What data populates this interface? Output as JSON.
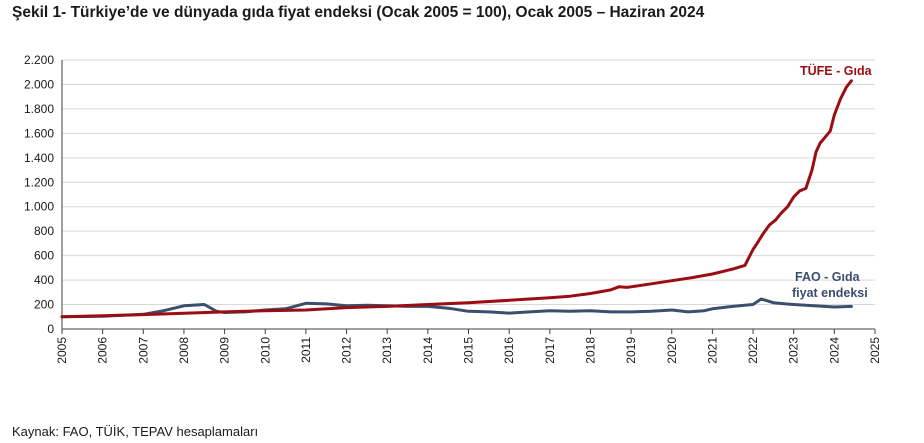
{
  "title": "Şekil 1- Türkiye’de ve dünyada gıda fiyat endeksi (Ocak 2005 = 100), Ocak 2005 – Haziran 2024",
  "source": "Kaynak: FAO, TÜİK, TEPAV hesaplamaları",
  "colors": {
    "tufe": "#9b0d12",
    "fao": "#3a4e6e",
    "grid": "#d9d9d9",
    "axis": "#404040"
  },
  "chart_data": {
    "type": "line",
    "xlim": [
      2005,
      2025
    ],
    "ylim": [
      0,
      2200
    ],
    "x_ticks": [
      2005,
      2006,
      2007,
      2008,
      2009,
      2010,
      2011,
      2012,
      2013,
      2014,
      2015,
      2016,
      2017,
      2018,
      2019,
      2020,
      2021,
      2022,
      2023,
      2024,
      2025
    ],
    "y_ticks": [
      0,
      200,
      400,
      600,
      800,
      1000,
      1200,
      1400,
      1600,
      1800,
      2000,
      2200
    ],
    "y_tick_labels": [
      "0",
      "200",
      "400",
      "600",
      "800",
      "1.000",
      "1.200",
      "1.400",
      "1.600",
      "1.800",
      "2.000",
      "2.200"
    ],
    "grid": true,
    "series": [
      {
        "name": "TÜFE - Gıda",
        "color": "#9b0d12",
        "x": [
          2005.0,
          2006.0,
          2007.0,
          2008.0,
          2009.0,
          2010.0,
          2011.0,
          2012.0,
          2013.0,
          2014.0,
          2015.0,
          2016.0,
          2016.5,
          2017.0,
          2017.5,
          2018.0,
          2018.5,
          2018.7,
          2018.9,
          2019.0,
          2019.5,
          2020.0,
          2020.5,
          2021.0,
          2021.5,
          2021.8,
          2022.0,
          2022.1,
          2022.25,
          2022.4,
          2022.55,
          2022.7,
          2022.85,
          2023.0,
          2023.15,
          2023.3,
          2023.45,
          2023.55,
          2023.65,
          2023.75,
          2023.9,
          2024.0,
          2024.15,
          2024.3,
          2024.42
        ],
        "y": [
          100,
          108,
          118,
          128,
          140,
          150,
          155,
          175,
          185,
          200,
          215,
          235,
          245,
          255,
          268,
          290,
          320,
          345,
          340,
          345,
          370,
          395,
          420,
          450,
          490,
          520,
          650,
          700,
          780,
          850,
          890,
          950,
          1000,
          1080,
          1130,
          1150,
          1300,
          1450,
          1520,
          1560,
          1620,
          1750,
          1880,
          1980,
          2030
        ]
      },
      {
        "name": "FAO - Gıda fiyat endeksi",
        "color": "#3a4e6e",
        "x": [
          2005.0,
          2006.0,
          2007.0,
          2007.5,
          2008.0,
          2008.5,
          2008.8,
          2009.0,
          2009.5,
          2010.0,
          2010.5,
          2011.0,
          2011.5,
          2012.0,
          2012.5,
          2013.0,
          2013.5,
          2014.0,
          2014.5,
          2015.0,
          2015.5,
          2016.0,
          2016.5,
          2017.0,
          2017.5,
          2018.0,
          2018.5,
          2019.0,
          2019.5,
          2020.0,
          2020.4,
          2020.8,
          2021.0,
          2021.5,
          2022.0,
          2022.2,
          2022.5,
          2022.8,
          2023.0,
          2023.5,
          2024.0,
          2024.42
        ],
        "y": [
          100,
          105,
          120,
          150,
          190,
          200,
          145,
          135,
          140,
          155,
          165,
          210,
          205,
          190,
          195,
          190,
          185,
          185,
          170,
          145,
          140,
          130,
          140,
          150,
          145,
          150,
          140,
          140,
          145,
          155,
          140,
          150,
          165,
          185,
          200,
          245,
          215,
          205,
          200,
          190,
          180,
          185
        ]
      }
    ]
  },
  "labels": {
    "tufe": "TÜFE - Gıda",
    "fao_line1": "FAO - Gıda",
    "fao_line2": "fiyat endeksi"
  }
}
